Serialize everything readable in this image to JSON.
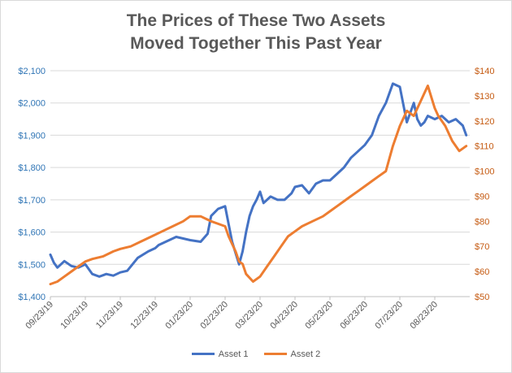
{
  "chart_data": {
    "type": "line",
    "title": [
      "The Prices of These Two Assets",
      "Moved Together This Past Year"
    ],
    "y_left": {
      "min": 1400,
      "max": 2100,
      "step": 100,
      "tick_labels": [
        "$1,400",
        "$1,500",
        "$1,600",
        "$1,700",
        "$1,800",
        "$1,900",
        "$2,000",
        "$2,100"
      ],
      "color": "#2e74b5"
    },
    "y_right": {
      "min": 50,
      "max": 140,
      "step": 10,
      "tick_labels": [
        "$50",
        "$60",
        "$70",
        "$80",
        "$90",
        "$100",
        "$110",
        "$120",
        "$130",
        "$140"
      ],
      "color": "#c55a11"
    },
    "x_tick_labels": [
      "09/23/19",
      "10/23/19",
      "11/23/19",
      "12/23/19",
      "01/23/20",
      "02/23/20",
      "03/23/20",
      "04/23/20",
      "05/23/20",
      "06/23/20",
      "07/23/20",
      "08/23/20"
    ],
    "grid": true,
    "legend_position": "bottom",
    "series": [
      {
        "name": "Asset 1",
        "axis": "left",
        "color": "#4472c4",
        "x": [
          0,
          0.1,
          0.2,
          0.4,
          0.6,
          0.8,
          1.0,
          1.2,
          1.4,
          1.6,
          1.8,
          2.0,
          2.2,
          2.5,
          2.8,
          3.0,
          3.1,
          3.3,
          3.6,
          4.0,
          4.3,
          4.5,
          4.6,
          4.8,
          5.0,
          5.2,
          5.4,
          5.5,
          5.6,
          5.7,
          5.8,
          5.9,
          6.0,
          6.1,
          6.2,
          6.3,
          6.5,
          6.7,
          6.9,
          7.0,
          7.2,
          7.4,
          7.6,
          7.8,
          8.0,
          8.2,
          8.4,
          8.6,
          8.8,
          9.0,
          9.2,
          9.4,
          9.6,
          9.8,
          10.0,
          10.2,
          10.4,
          10.5,
          10.6,
          10.7,
          10.8,
          11.0,
          11.2,
          11.4,
          11.6,
          11.8,
          11.9
        ],
        "values": [
          1530,
          1505,
          1490,
          1510,
          1495,
          1490,
          1500,
          1470,
          1462,
          1470,
          1465,
          1475,
          1480,
          1520,
          1540,
          1550,
          1560,
          1570,
          1585,
          1575,
          1570,
          1595,
          1650,
          1672,
          1680,
          1570,
          1500,
          1540,
          1600,
          1650,
          1680,
          1700,
          1725,
          1690,
          1700,
          1710,
          1700,
          1700,
          1720,
          1740,
          1745,
          1720,
          1750,
          1760,
          1760,
          1780,
          1800,
          1830,
          1850,
          1870,
          1900,
          1960,
          2000,
          2060,
          2050,
          1940,
          2000,
          1950,
          1930,
          1940,
          1960,
          1950,
          1960,
          1940,
          1950,
          1930,
          1900
        ]
      },
      {
        "name": "Asset 2",
        "axis": "right",
        "color": "#ed7d31",
        "x": [
          0,
          0.2,
          0.4,
          0.6,
          0.8,
          1.0,
          1.2,
          1.5,
          1.8,
          2.0,
          2.3,
          2.6,
          2.9,
          3.2,
          3.5,
          3.8,
          4.0,
          4.3,
          4.6,
          4.8,
          5.0,
          5.1,
          5.3,
          5.4,
          5.5,
          5.6,
          5.8,
          6.0,
          6.2,
          6.4,
          6.6,
          6.8,
          7.0,
          7.2,
          7.5,
          7.8,
          8.0,
          8.2,
          8.4,
          8.6,
          8.8,
          9.0,
          9.2,
          9.4,
          9.6,
          9.8,
          10.0,
          10.2,
          10.4,
          10.6,
          10.8,
          11.0,
          11.1,
          11.3,
          11.5,
          11.7,
          11.9
        ],
        "values": [
          55,
          56,
          58,
          60,
          62,
          64,
          65,
          66,
          68,
          69,
          70,
          72,
          74,
          76,
          78,
          80,
          82,
          82,
          80,
          79,
          78,
          74,
          68,
          64,
          63,
          59,
          56,
          58,
          62,
          66,
          70,
          74,
          76,
          78,
          80,
          82,
          84,
          86,
          88,
          90,
          92,
          94,
          96,
          98,
          100,
          110,
          118,
          124,
          122,
          128,
          134,
          125,
          122,
          118,
          112,
          108,
          110
        ]
      }
    ]
  },
  "legend": {
    "items": [
      "Asset 1",
      "Asset 2"
    ]
  }
}
